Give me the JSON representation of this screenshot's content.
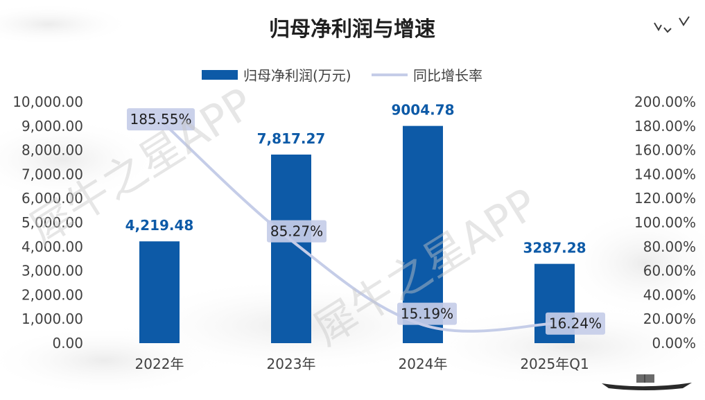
{
  "chart_data": {
    "type": "bar",
    "title": "归母净利润与增速",
    "categories": [
      "2022年",
      "2023年",
      "2024年",
      "2025年Q1"
    ],
    "series": [
      {
        "name": "归母净利润(万元)",
        "type": "bar",
        "axis": "left",
        "color": "#0d5aa7",
        "values": [
          4219.48,
          7817.27,
          9004.78,
          3287.28
        ],
        "labels": [
          "4,219.48",
          "7,817.27",
          "9004.78",
          "3287.28"
        ]
      },
      {
        "name": "同比增长率",
        "type": "line",
        "axis": "right",
        "color": "#c5cde8",
        "values": [
          185.55,
          85.27,
          15.19,
          16.24
        ],
        "labels": [
          "185.55%",
          "85.27%",
          "15.19%",
          "16.24%"
        ]
      }
    ],
    "y_left": {
      "ylim": [
        0,
        10000
      ],
      "ticks": [
        "0.00",
        "1,000.00",
        "2,000.00",
        "3,000.00",
        "4,000.00",
        "5,000.00",
        "6,000.00",
        "7,000.00",
        "8,000.00",
        "9,000.00",
        "10,000.00"
      ]
    },
    "y_right": {
      "ylim": [
        0,
        200
      ],
      "ticks": [
        "0.00%",
        "20.00%",
        "40.00%",
        "60.00%",
        "80.00%",
        "100.00%",
        "120.00%",
        "140.00%",
        "160.00%",
        "180.00%",
        "200.00%"
      ]
    },
    "legend_position": "top-center",
    "grid": false
  },
  "watermark": "犀牛之星APP"
}
